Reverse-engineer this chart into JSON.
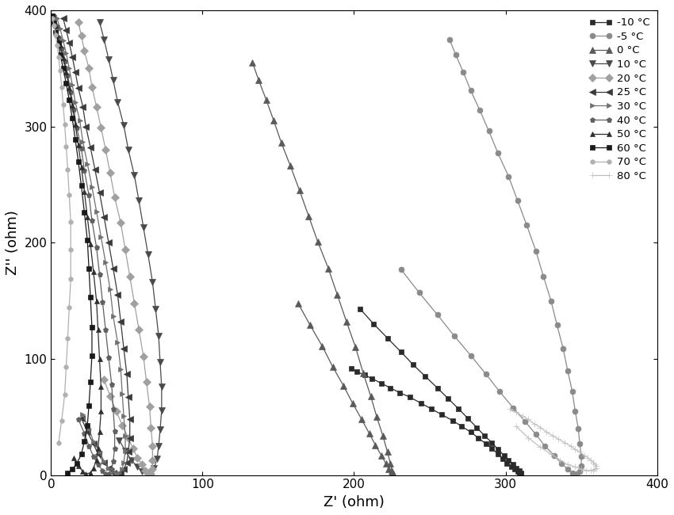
{
  "xlabel": "Z' (ohm)",
  "ylabel": "Z'' (ohm)",
  "xlim": [
    0,
    400
  ],
  "ylim": [
    0,
    400
  ],
  "xticks": [
    0,
    100,
    200,
    300,
    400
  ],
  "yticks": [
    0,
    100,
    200,
    300,
    400
  ],
  "figsize": [
    8.5,
    6.5
  ],
  "dpi": 100,
  "series": [
    {
      "label": "-10 °C",
      "color": "#2a2a2a",
      "marker": "s",
      "markersize": 5,
      "x": [
        198,
        202,
        207,
        212,
        218,
        224,
        230,
        237,
        244,
        251,
        258,
        265,
        271,
        277,
        282,
        287,
        291,
        295,
        298,
        301,
        304,
        306,
        308,
        309,
        310,
        310,
        309,
        307,
        305,
        302,
        299,
        295,
        291,
        286,
        281,
        275,
        269,
        262,
        255,
        247,
        239,
        231,
        222,
        213,
        204
      ],
      "y": [
        92,
        89,
        86,
        83,
        79,
        75,
        71,
        67,
        62,
        57,
        52,
        47,
        42,
        37,
        32,
        27,
        23,
        18,
        14,
        10,
        7,
        5,
        3,
        2,
        1,
        2,
        4,
        6,
        9,
        13,
        17,
        22,
        28,
        34,
        41,
        49,
        57,
        66,
        75,
        85,
        95,
        106,
        118,
        130,
        143
      ]
    },
    {
      "label": "-5 °C",
      "color": "#8a8a8a",
      "marker": "o",
      "markersize": 5,
      "x": [
        263,
        267,
        272,
        277,
        283,
        289,
        295,
        302,
        308,
        314,
        320,
        325,
        330,
        334,
        338,
        341,
        344,
        346,
        348,
        349,
        350,
        350,
        349,
        347,
        344,
        341,
        337,
        332,
        326,
        320,
        313,
        305,
        296,
        287,
        277,
        266,
        255,
        243,
        231
      ],
      "y": [
        375,
        362,
        347,
        331,
        314,
        296,
        277,
        257,
        236,
        215,
        193,
        171,
        150,
        129,
        109,
        90,
        72,
        55,
        40,
        27,
        16,
        8,
        3,
        1,
        2,
        5,
        10,
        17,
        25,
        35,
        46,
        58,
        72,
        87,
        103,
        120,
        138,
        157,
        177
      ]
    },
    {
      "label": "0 °C",
      "color": "#5a5a5a",
      "marker": "^",
      "markersize": 6,
      "x": [
        133,
        137,
        142,
        147,
        152,
        158,
        164,
        170,
        176,
        183,
        189,
        195,
        201,
        206,
        211,
        215,
        219,
        222,
        224,
        225,
        226,
        225,
        223,
        221,
        218,
        214,
        210,
        205,
        199,
        193,
        186,
        179,
        171,
        163
      ],
      "y": [
        355,
        340,
        323,
        305,
        286,
        266,
        245,
        223,
        201,
        178,
        155,
        132,
        110,
        88,
        68,
        50,
        34,
        20,
        10,
        4,
        1,
        2,
        5,
        10,
        17,
        26,
        36,
        48,
        62,
        77,
        93,
        111,
        129,
        148
      ]
    },
    {
      "label": "10 °C",
      "color": "#4a4a4a",
      "marker": "v",
      "markersize": 6,
      "x": [
        32,
        35,
        38,
        41,
        44,
        48,
        51,
        55,
        58,
        61,
        64,
        67,
        69,
        71,
        72,
        73,
        73,
        72,
        71,
        70,
        68,
        66,
        63,
        60,
        57,
        53,
        49,
        45
      ],
      "y": [
        390,
        375,
        358,
        340,
        321,
        301,
        280,
        258,
        236,
        213,
        190,
        166,
        143,
        120,
        97,
        76,
        56,
        39,
        25,
        14,
        6,
        2,
        1,
        3,
        7,
        13,
        21,
        30
      ]
    },
    {
      "label": "20 °C",
      "color": "#a0a0a0",
      "marker": "D",
      "markersize": 5,
      "x": [
        18,
        20,
        22,
        25,
        27,
        30,
        33,
        36,
        39,
        42,
        46,
        49,
        52,
        55,
        58,
        61,
        63,
        65,
        66,
        67,
        67,
        67,
        66,
        64,
        62,
        60,
        57,
        54,
        51,
        47,
        43,
        39,
        35
      ],
      "y": [
        390,
        378,
        365,
        350,
        334,
        317,
        299,
        280,
        260,
        239,
        217,
        194,
        171,
        148,
        125,
        102,
        80,
        59,
        41,
        25,
        13,
        5,
        1,
        1,
        4,
        9,
        15,
        23,
        32,
        43,
        55,
        68,
        82
      ]
    },
    {
      "label": "25 °C",
      "color": "#3a3a3a",
      "marker": "<",
      "markersize": 6,
      "x": [
        8,
        10,
        12,
        14,
        16,
        18,
        21,
        23,
        26,
        29,
        32,
        35,
        38,
        41,
        44,
        46,
        48,
        50,
        51,
        52,
        52,
        51,
        50,
        48,
        46,
        44,
        41,
        38,
        35,
        31,
        28,
        24,
        20
      ],
      "y": [
        393,
        383,
        372,
        360,
        347,
        333,
        317,
        300,
        282,
        263,
        243,
        222,
        200,
        178,
        155,
        132,
        109,
        87,
        67,
        48,
        32,
        20,
        11,
        5,
        2,
        1,
        2,
        6,
        11,
        18,
        27,
        37,
        49
      ]
    },
    {
      "label": "30 °C",
      "color": "#707070",
      "marker": ">",
      "markersize": 5,
      "x": [
        4,
        6,
        8,
        10,
        12,
        14,
        16,
        19,
        21,
        24,
        27,
        30,
        33,
        36,
        39,
        41,
        44,
        46,
        47,
        48,
        49,
        49,
        48,
        47,
        45,
        43,
        41,
        38,
        35,
        32,
        28,
        25,
        21
      ],
      "y": [
        393,
        384,
        374,
        363,
        350,
        336,
        321,
        305,
        287,
        268,
        248,
        227,
        205,
        183,
        160,
        137,
        114,
        91,
        70,
        51,
        34,
        21,
        11,
        5,
        2,
        1,
        3,
        6,
        12,
        20,
        29,
        40,
        52
      ]
    },
    {
      "label": "40 °C",
      "color": "#606060",
      "marker": "p",
      "markersize": 5,
      "x": [
        2,
        4,
        5,
        7,
        9,
        11,
        13,
        15,
        17,
        20,
        22,
        25,
        27,
        30,
        32,
        34,
        36,
        38,
        40,
        41,
        42,
        42,
        41,
        40,
        38,
        36,
        34,
        31,
        28,
        25,
        22,
        18
      ],
      "y": [
        395,
        386,
        377,
        367,
        356,
        344,
        330,
        315,
        299,
        281,
        262,
        241,
        219,
        196,
        173,
        149,
        125,
        101,
        78,
        57,
        38,
        23,
        12,
        5,
        1,
        1,
        4,
        9,
        16,
        25,
        36,
        48
      ]
    },
    {
      "label": "50 °C",
      "color": "#2f2f2f",
      "marker": "^",
      "markersize": 4,
      "x": [
        1,
        3,
        4,
        6,
        8,
        10,
        12,
        14,
        16,
        18,
        20,
        22,
        24,
        26,
        28,
        30,
        31,
        32,
        33,
        33,
        32,
        31,
        30,
        28,
        26,
        23,
        21,
        18,
        15
      ],
      "y": [
        395,
        387,
        379,
        370,
        359,
        347,
        333,
        318,
        302,
        284,
        265,
        244,
        222,
        199,
        175,
        150,
        125,
        100,
        76,
        55,
        37,
        23,
        13,
        6,
        2,
        1,
        3,
        8,
        15
      ]
    },
    {
      "label": "60 °C",
      "color": "#1a1a1a",
      "marker": "s",
      "markersize": 4,
      "x": [
        1,
        2,
        3,
        5,
        6,
        8,
        10,
        12,
        14,
        16,
        18,
        20,
        22,
        24,
        25,
        26,
        27,
        27,
        26,
        25,
        24,
        22,
        20,
        17,
        14,
        11
      ],
      "y": [
        395,
        389,
        381,
        372,
        362,
        350,
        337,
        323,
        307,
        289,
        270,
        249,
        226,
        202,
        178,
        153,
        127,
        103,
        80,
        60,
        43,
        29,
        18,
        10,
        5,
        2
      ]
    },
    {
      "label": "70 °C",
      "color": "#b0b0b0",
      "marker": "o",
      "markersize": 4,
      "x": [
        1,
        2,
        3,
        4,
        5,
        6,
        7,
        8,
        9,
        10,
        11,
        12,
        13,
        13,
        13,
        12,
        11,
        10,
        9,
        7,
        5
      ],
      "y": [
        393,
        387,
        379,
        370,
        360,
        348,
        334,
        319,
        302,
        283,
        263,
        241,
        218,
        194,
        169,
        144,
        118,
        93,
        69,
        47,
        28
      ]
    },
    {
      "label": "80 °C",
      "color": "#c0c0c0",
      "marker": "+",
      "markersize": 6,
      "x": [
        303,
        307,
        311,
        315,
        319,
        323,
        327,
        331,
        335,
        339,
        343,
        346,
        349,
        352,
        354,
        356,
        358,
        359,
        360,
        360,
        359,
        358,
        356,
        353,
        350,
        346,
        341,
        336,
        330,
        323,
        315,
        307
      ],
      "y": [
        57,
        54,
        51,
        48,
        44,
        41,
        37,
        34,
        31,
        28,
        25,
        22,
        20,
        17,
        15,
        13,
        11,
        9,
        8,
        6,
        5,
        4,
        4,
        4,
        5,
        7,
        9,
        13,
        18,
        24,
        32,
        42
      ]
    }
  ],
  "legend_order": [
    0,
    1,
    2,
    3,
    4,
    5,
    6,
    7,
    8,
    9,
    10,
    11
  ]
}
